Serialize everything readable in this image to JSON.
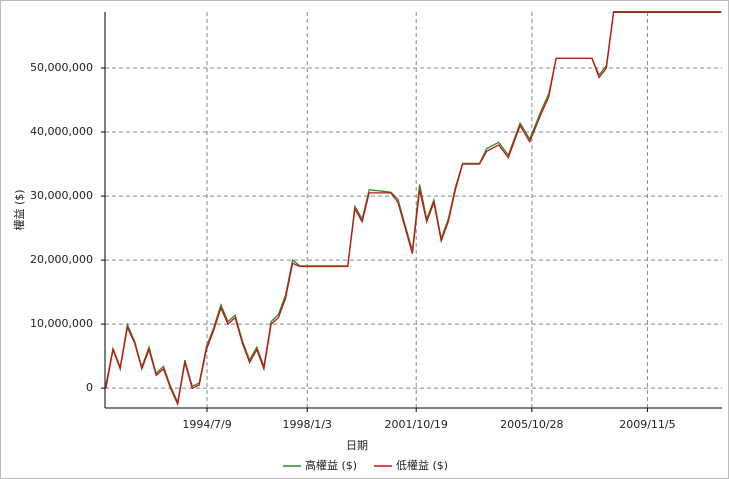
{
  "chart_data": {
    "type": "line",
    "xlabel": "日期",
    "ylabel": "權益 ($)",
    "x": [
      "1991/1/1",
      "1991/4/1",
      "1991/7/1",
      "1991/10/1",
      "1992/1/1",
      "1992/4/1",
      "1992/7/1",
      "1992/10/1",
      "1993/1/1",
      "1993/4/1",
      "1993/7/1",
      "1993/10/1",
      "1994/1/1",
      "1994/4/1",
      "1994/7/1",
      "1994/10/1",
      "1995/1/1",
      "1995/4/1",
      "1995/7/1",
      "1995/10/1",
      "1996/1/1",
      "1996/4/1",
      "1996/7/1",
      "1996/10/1",
      "1997/1/1",
      "1997/4/1",
      "1997/7/1",
      "1997/10/1",
      "1999/6/1",
      "1999/9/1",
      "1999/12/1",
      "2000/3/1",
      "2000/12/1",
      "2001/3/1",
      "2001/6/1",
      "2001/9/1",
      "2001/12/1",
      "2002/3/1",
      "2002/6/1",
      "2002/9/1",
      "2002/12/1",
      "2003/3/1",
      "2003/6/1",
      "2004/1/1",
      "2004/4/1",
      "2004/9/1",
      "2005/1/1",
      "2005/6/1",
      "2005/10/1",
      "2006/3/1",
      "2006/6/1",
      "2006/9/1",
      "2007/12/1",
      "2008/3/1",
      "2008/6/1",
      "2008/9/1",
      "2012/6/1"
    ],
    "series": [
      {
        "name": "高權益 ($)",
        "color": "#2a8a2a",
        "values": [
          500000,
          6200000,
          3300000,
          9900000,
          7300000,
          3300000,
          6400000,
          2300000,
          3400000,
          300000,
          -2200000,
          4400000,
          300000,
          800000,
          6500000,
          9400000,
          13000000,
          10400000,
          11400000,
          7400000,
          4400000,
          6400000,
          3400000,
          10400000,
          11500000,
          14500000,
          20000000,
          19100000,
          19100000,
          28400000,
          26400000,
          31000000,
          30600000,
          29500000,
          25400000,
          21500000,
          31800000,
          26400000,
          29400000,
          23400000,
          26400000,
          31400000,
          35100000,
          35100000,
          37400000,
          38400000,
          36400000,
          41400000,
          38900000,
          43500000,
          46000000,
          51500000,
          51500000,
          48900000,
          50400000,
          58800000,
          58800000
        ]
      },
      {
        "name": "低權益 ($)",
        "color": "#cc1111",
        "values": [
          0,
          6000000,
          3000000,
          9500000,
          7000000,
          3000000,
          6000000,
          2000000,
          3000000,
          0,
          -2500000,
          4000000,
          0,
          500000,
          6000000,
          9000000,
          12500000,
          10000000,
          11000000,
          7000000,
          4000000,
          6000000,
          3000000,
          10000000,
          11000000,
          14000000,
          19500000,
          19000000,
          19000000,
          28000000,
          26000000,
          30500000,
          30500000,
          29000000,
          25000000,
          21000000,
          31000000,
          26000000,
          29000000,
          23000000,
          26000000,
          31000000,
          35000000,
          35000000,
          37000000,
          38000000,
          36000000,
          41000000,
          38500000,
          43000000,
          45500000,
          51500000,
          51500000,
          48500000,
          50000000,
          58700000,
          58700000
        ]
      }
    ],
    "xlim": [
      "1990/12/20",
      "2012/6/10"
    ],
    "xticks": [
      "1994/7/9",
      "1998/1/3",
      "2001/10/19",
      "2005/10/28",
      "2009/11/5"
    ],
    "ylim": [
      -3100000,
      58750000
    ],
    "yticks": [
      0,
      {
        "value": 10000000,
        "label": "10,000,000"
      },
      {
        "value": 20000000,
        "label": "20,000,000"
      },
      {
        "value": 30000000,
        "label": "30,000,000"
      },
      {
        "value": 40000000,
        "label": "40,000,000"
      },
      {
        "value": 50000000,
        "label": "50,000,000"
      }
    ],
    "grid": true
  }
}
